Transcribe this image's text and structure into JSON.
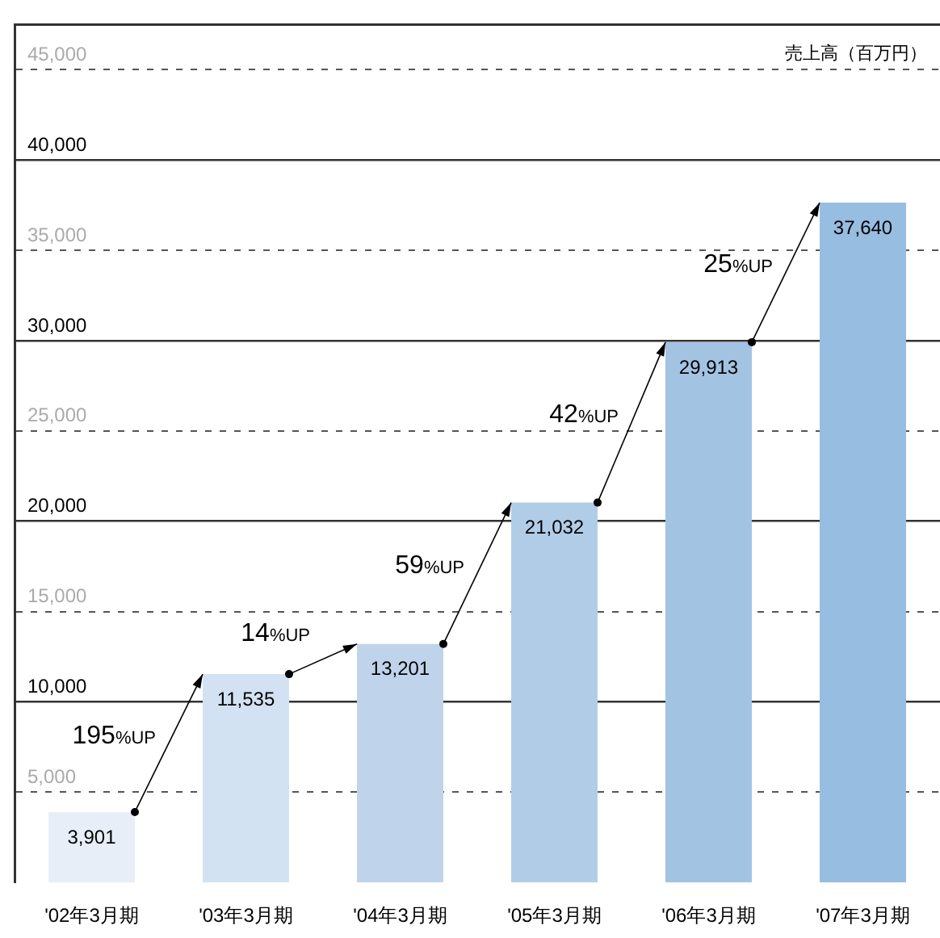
{
  "chart_data": {
    "type": "bar",
    "ylabel": "売上高（百万円）",
    "categories": [
      "'02年3月期",
      "'03年3月期",
      "'04年3月期",
      "'05年3月期",
      "'06年3月期",
      "'07年3月期"
    ],
    "values": [
      3901,
      11535,
      13201,
      21032,
      29913,
      37640
    ],
    "colors": [
      "#e8eef7",
      "#d3e2f2",
      "#bfd4ea",
      "#b1cce7",
      "#a3c3e2",
      "#97bde0"
    ],
    "value_labels": [
      "3,901",
      "11,535",
      "13,201",
      "21,032",
      "29,913",
      "37,640"
    ],
    "annotations": [
      "195%UP",
      "14%UP",
      "59%UP",
      "42%UP",
      "25%UP"
    ],
    "ylim": [
      0,
      47500
    ],
    "yticks": [
      {
        "value": 5000,
        "label": "5,000"
      },
      {
        "value": 10000,
        "label": "10,000"
      },
      {
        "value": 15000,
        "label": "15,000"
      },
      {
        "value": 20000,
        "label": "20,000"
      },
      {
        "value": 25000,
        "label": "25,000"
      },
      {
        "value": 30000,
        "label": "30,000"
      },
      {
        "value": 35000,
        "label": "35,000"
      },
      {
        "value": 40000,
        "label": "40,000"
      },
      {
        "value": 45000,
        "label": "45,000"
      }
    ],
    "grid": "y"
  }
}
